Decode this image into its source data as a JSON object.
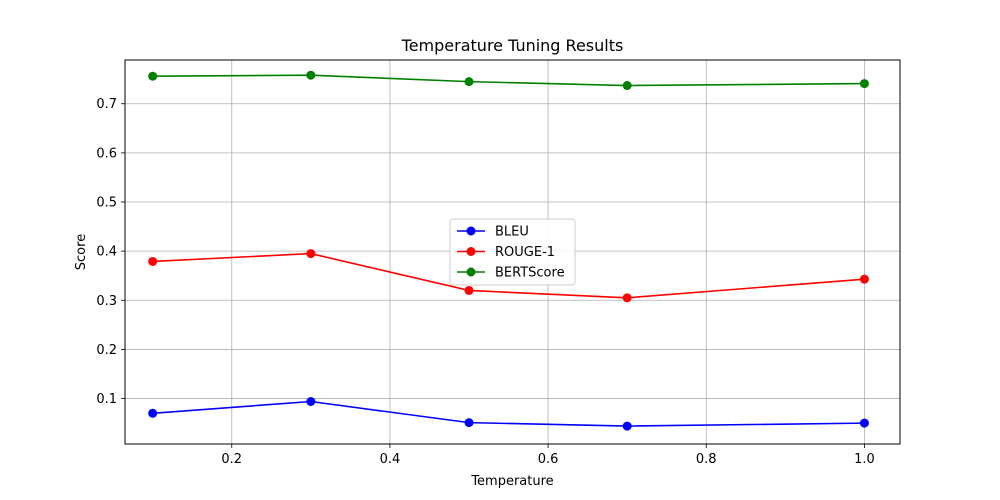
{
  "chart_data": {
    "type": "line",
    "title": "Temperature Tuning Results",
    "xlabel": "Temperature",
    "ylabel": "Score",
    "x": [
      0.1,
      0.3,
      0.5,
      0.7,
      1.0
    ],
    "xlim": [
      0.065,
      1.045
    ],
    "ylim": [
      0.0075,
      0.789
    ],
    "xticks": [
      "0.2",
      "0.4",
      "0.6",
      "0.8",
      "1.0"
    ],
    "yticks": [
      "0.1",
      "0.2",
      "0.3",
      "0.4",
      "0.5",
      "0.6",
      "0.7"
    ],
    "grid": true,
    "legend_position": "center",
    "series": [
      {
        "name": "BLEU",
        "color": "#0000ff",
        "marker": "circle",
        "values": [
          0.07,
          0.094,
          0.051,
          0.044,
          0.05
        ]
      },
      {
        "name": "ROUGE-1",
        "color": "#ff0000",
        "marker": "circle",
        "values": [
          0.379,
          0.395,
          0.32,
          0.305,
          0.343
        ]
      },
      {
        "name": "BERTScore",
        "color": "#008000",
        "marker": "circle",
        "values": [
          0.756,
          0.758,
          0.745,
          0.737,
          0.741
        ]
      }
    ]
  }
}
